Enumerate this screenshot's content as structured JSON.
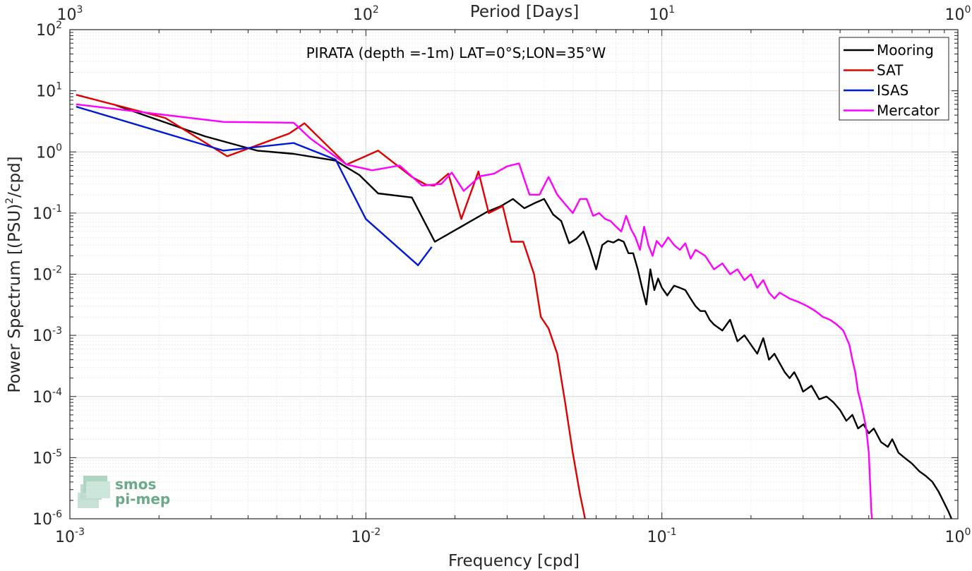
{
  "chart_data": {
    "type": "line",
    "title": "PIRATA (depth =-1m) LAT=0°S;LON=35°W",
    "xlabel": "Frequency [cpd]",
    "ylabel": "Power Spectrum [(PSU)",
    "ylabel_sup": "2",
    "ylabel_suffix": "/cpd]",
    "top_xlabel": "Period [Days]",
    "xscale": "log",
    "yscale": "log",
    "xlim": [
      0.001,
      1
    ],
    "ylim": [
      1e-06,
      100
    ],
    "grid": true,
    "legend_position": "top-right",
    "x_ticks": [
      {
        "value": 0.001,
        "base": "10",
        "exp": "-3"
      },
      {
        "value": 0.01,
        "base": "10",
        "exp": "-2"
      },
      {
        "value": 0.1,
        "base": "10",
        "exp": "-1"
      },
      {
        "value": 1,
        "base": "10",
        "exp": "0"
      }
    ],
    "top_ticks": [
      {
        "value": 0.001,
        "base": "10",
        "exp": "3"
      },
      {
        "value": 0.01,
        "base": "10",
        "exp": "2"
      },
      {
        "value": 0.1,
        "base": "10",
        "exp": "1"
      },
      {
        "value": 1,
        "base": "10",
        "exp": "0"
      }
    ],
    "y_ticks": [
      {
        "value": 100,
        "base": "10",
        "exp": "2"
      },
      {
        "value": 10,
        "base": "10",
        "exp": "1"
      },
      {
        "value": 1,
        "base": "10",
        "exp": "0"
      },
      {
        "value": 0.1,
        "base": "10",
        "exp": "-1"
      },
      {
        "value": 0.01,
        "base": "10",
        "exp": "-2"
      },
      {
        "value": 0.001,
        "base": "10",
        "exp": "-3"
      },
      {
        "value": 0.0001,
        "base": "10",
        "exp": "-4"
      },
      {
        "value": 1e-05,
        "base": "10",
        "exp": "-5"
      },
      {
        "value": 1e-06,
        "base": "10",
        "exp": "-6"
      }
    ],
    "series": [
      {
        "name": "Mooring",
        "color": "#000000",
        "points": [
          [
            0.00143,
            5.8
          ],
          [
            0.00286,
            1.8
          ],
          [
            0.00429,
            1.05
          ],
          [
            0.00571,
            0.93
          ],
          [
            0.0079,
            0.72
          ],
          [
            0.0095,
            0.42
          ],
          [
            0.011,
            0.21
          ],
          [
            0.0143,
            0.18
          ],
          [
            0.0171,
            0.034
          ],
          [
            0.021,
            0.06
          ],
          [
            0.0257,
            0.105
          ],
          [
            0.0286,
            0.13
          ],
          [
            0.0314,
            0.17
          ],
          [
            0.0343,
            0.12
          ],
          [
            0.0371,
            0.145
          ],
          [
            0.04,
            0.17
          ],
          [
            0.0429,
            0.095
          ],
          [
            0.0457,
            0.074
          ],
          [
            0.0486,
            0.032
          ],
          [
            0.0514,
            0.038
          ],
          [
            0.0543,
            0.05
          ],
          [
            0.0571,
            0.026
          ],
          [
            0.06,
            0.012
          ],
          [
            0.0629,
            0.03
          ],
          [
            0.0657,
            0.035
          ],
          [
            0.0686,
            0.033
          ],
          [
            0.0714,
            0.037
          ],
          [
            0.0743,
            0.034
          ],
          [
            0.0771,
            0.022
          ],
          [
            0.08,
            0.022
          ],
          [
            0.0829,
            0.012
          ],
          [
            0.0857,
            0.006
          ],
          [
            0.0886,
            0.0032
          ],
          [
            0.0914,
            0.012
          ],
          [
            0.0943,
            0.0055
          ],
          [
            0.0971,
            0.0085
          ],
          [
            0.1,
            0.006
          ],
          [
            0.1043,
            0.0045
          ],
          [
            0.11,
            0.0065
          ],
          [
            0.115,
            0.006
          ],
          [
            0.12,
            0.0055
          ],
          [
            0.125,
            0.004
          ],
          [
            0.13,
            0.003
          ],
          [
            0.135,
            0.0025
          ],
          [
            0.14,
            0.0025
          ],
          [
            0.145,
            0.0018
          ],
          [
            0.15,
            0.0015
          ],
          [
            0.16,
            0.0012
          ],
          [
            0.17,
            0.0018
          ],
          [
            0.18,
            0.0008
          ],
          [
            0.19,
            0.001
          ],
          [
            0.2,
            0.0007
          ],
          [
            0.21,
            0.0005
          ],
          [
            0.22,
            0.0009
          ],
          [
            0.23,
            0.0004
          ],
          [
            0.24,
            0.0005
          ],
          [
            0.25,
            0.00035
          ],
          [
            0.26,
            0.00025
          ],
          [
            0.27,
            0.0002
          ],
          [
            0.28,
            0.00025
          ],
          [
            0.29,
            0.00018
          ],
          [
            0.3,
            0.00012
          ],
          [
            0.32,
            0.00015
          ],
          [
            0.34,
            9e-05
          ],
          [
            0.36,
            0.0001
          ],
          [
            0.38,
            8e-05
          ],
          [
            0.4,
            6e-05
          ],
          [
            0.42,
            4e-05
          ],
          [
            0.44,
            5e-05
          ],
          [
            0.46,
            3e-05
          ],
          [
            0.48,
            3.5e-05
          ],
          [
            0.5,
            2.5e-05
          ],
          [
            0.52,
            3e-05
          ],
          [
            0.55,
            1.8e-05
          ],
          [
            0.58,
            1.5e-05
          ],
          [
            0.6,
            2e-05
          ],
          [
            0.63,
            1.2e-05
          ],
          [
            0.66,
            1e-05
          ],
          [
            0.7,
            8e-06
          ],
          [
            0.74,
            6e-06
          ],
          [
            0.78,
            5e-06
          ],
          [
            0.82,
            4e-06
          ],
          [
            0.86,
            2.8e-06
          ],
          [
            0.9,
            1.8e-06
          ],
          [
            0.93,
            1.3e-06
          ],
          [
            0.96,
            9e-07
          ]
        ]
      },
      {
        "name": "SAT",
        "color": "#e00000",
        "points": [
          [
            0.00105,
            8.6
          ],
          [
            0.0021,
            3.6
          ],
          [
            0.0034,
            0.85
          ],
          [
            0.0055,
            2.0
          ],
          [
            0.0062,
            2.95
          ],
          [
            0.0086,
            0.62
          ],
          [
            0.011,
            1.05
          ],
          [
            0.0143,
            0.39
          ],
          [
            0.016,
            0.29
          ],
          [
            0.017,
            0.28
          ],
          [
            0.019,
            0.44
          ],
          [
            0.021,
            0.08
          ],
          [
            0.024,
            0.48
          ],
          [
            0.026,
            0.1
          ],
          [
            0.029,
            0.13
          ],
          [
            0.031,
            0.034
          ],
          [
            0.034,
            0.034
          ],
          [
            0.037,
            0.01
          ],
          [
            0.039,
            0.002
          ],
          [
            0.0414,
            0.0013
          ],
          [
            0.0443,
            0.0005
          ],
          [
            0.0471,
            8e-05
          ],
          [
            0.05,
            1.2e-05
          ],
          [
            0.0529,
            2.5e-06
          ],
          [
            0.0557,
            7.5e-07
          ]
        ]
      },
      {
        "name": "ISAS",
        "color": "#0018d8",
        "points": [
          [
            0.00105,
            5.5
          ],
          [
            0.0033,
            1.05
          ],
          [
            0.0057,
            1.4
          ],
          [
            0.0079,
            0.75
          ],
          [
            0.01,
            0.08
          ],
          [
            0.015,
            0.014
          ],
          [
            0.0167,
            0.028
          ]
        ]
      },
      {
        "name": "Mercator",
        "color": "#ff00ff",
        "points": [
          [
            0.00105,
            6.0
          ],
          [
            0.0033,
            3.1
          ],
          [
            0.0057,
            3.0
          ],
          [
            0.0065,
            1.65
          ],
          [
            0.0086,
            0.62
          ],
          [
            0.0105,
            0.5
          ],
          [
            0.013,
            0.6
          ],
          [
            0.0155,
            0.28
          ],
          [
            0.018,
            0.3
          ],
          [
            0.0195,
            0.46
          ],
          [
            0.0214,
            0.23
          ],
          [
            0.0243,
            0.4
          ],
          [
            0.0271,
            0.44
          ],
          [
            0.03,
            0.58
          ],
          [
            0.0329,
            0.65
          ],
          [
            0.0357,
            0.2
          ],
          [
            0.0386,
            0.2
          ],
          [
            0.0414,
            0.39
          ],
          [
            0.0443,
            0.2
          ],
          [
            0.0471,
            0.14
          ],
          [
            0.05,
            0.1
          ],
          [
            0.0529,
            0.17
          ],
          [
            0.0557,
            0.17
          ],
          [
            0.0586,
            0.09
          ],
          [
            0.0614,
            0.1
          ],
          [
            0.0643,
            0.08
          ],
          [
            0.0671,
            0.074
          ],
          [
            0.07,
            0.06
          ],
          [
            0.0729,
            0.05
          ],
          [
            0.0757,
            0.09
          ],
          [
            0.0786,
            0.055
          ],
          [
            0.0814,
            0.04
          ],
          [
            0.0843,
            0.025
          ],
          [
            0.0871,
            0.06
          ],
          [
            0.09,
            0.03
          ],
          [
            0.093,
            0.02
          ],
          [
            0.096,
            0.035
          ],
          [
            0.1,
            0.028
          ],
          [
            0.105,
            0.04
          ],
          [
            0.11,
            0.03
          ],
          [
            0.115,
            0.025
          ],
          [
            0.12,
            0.032
          ],
          [
            0.125,
            0.018
          ],
          [
            0.13,
            0.025
          ],
          [
            0.14,
            0.02
          ],
          [
            0.15,
            0.012
          ],
          [
            0.16,
            0.015
          ],
          [
            0.17,
            0.01
          ],
          [
            0.18,
            0.012
          ],
          [
            0.19,
            0.008
          ],
          [
            0.2,
            0.01
          ],
          [
            0.21,
            0.006
          ],
          [
            0.22,
            0.008
          ],
          [
            0.23,
            0.005
          ],
          [
            0.24,
            0.004
          ],
          [
            0.25,
            0.005
          ],
          [
            0.27,
            0.004
          ],
          [
            0.29,
            0.0035
          ],
          [
            0.31,
            0.003
          ],
          [
            0.33,
            0.0025
          ],
          [
            0.35,
            0.002
          ],
          [
            0.37,
            0.0018
          ],
          [
            0.39,
            0.0015
          ],
          [
            0.41,
            0.0012
          ],
          [
            0.43,
            0.0007
          ],
          [
            0.44,
            0.0004
          ],
          [
            0.45,
            0.00025
          ],
          [
            0.46,
            0.00012
          ],
          [
            0.47,
            8e-05
          ],
          [
            0.48,
            5e-05
          ],
          [
            0.49,
            3e-05
          ],
          [
            0.5,
            1.2e-05
          ],
          [
            0.505,
            4e-06
          ],
          [
            0.51,
            1.3e-06
          ],
          [
            0.515,
            8e-07
          ]
        ]
      }
    ],
    "logo": {
      "line1": "smos",
      "line2": "pi-mep"
    }
  }
}
